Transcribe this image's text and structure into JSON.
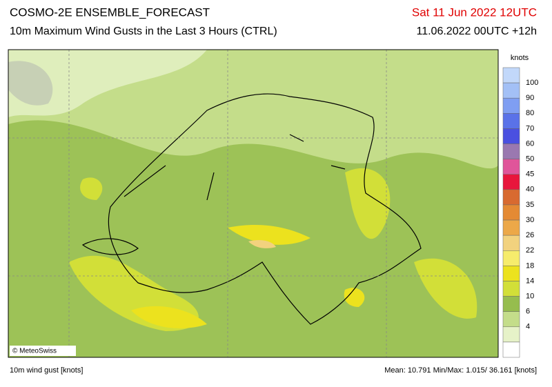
{
  "header": {
    "title": "COSMO-2E ENSEMBLE_FORECAST",
    "subtitle": "10m Maximum Wind Gusts in the Last 3 Hours (CTRL)",
    "valid_time": "Sat 11 Jun 2022 12UTC",
    "run": "11.06.2022 00UTC +12h"
  },
  "map": {
    "credit": "© MeteoSwiss"
  },
  "legend": {
    "unit": "knots",
    "thresholds": [
      100,
      90,
      80,
      70,
      60,
      50,
      45,
      40,
      35,
      30,
      26,
      22,
      18,
      14,
      10,
      6,
      4
    ],
    "colors": [
      "#c2d8fa",
      "#a3c0f6",
      "#7f9ef2",
      "#5a72e8",
      "#4a50e0",
      "#9a78b0",
      "#e0559a",
      "#e8163c",
      "#d86a30",
      "#e48a34",
      "#eca848",
      "#f2d27e",
      "#f6ec6c",
      "#ece21e",
      "#d2df38",
      "#96bd4e",
      "#c4dd8a",
      "#e6f2c8",
      "#ffffff"
    ]
  },
  "footer": {
    "left": "10m wind gust [knots]",
    "right": "Mean: 10.791 Min/Max:  1.015/ 36.161 [knots]"
  }
}
